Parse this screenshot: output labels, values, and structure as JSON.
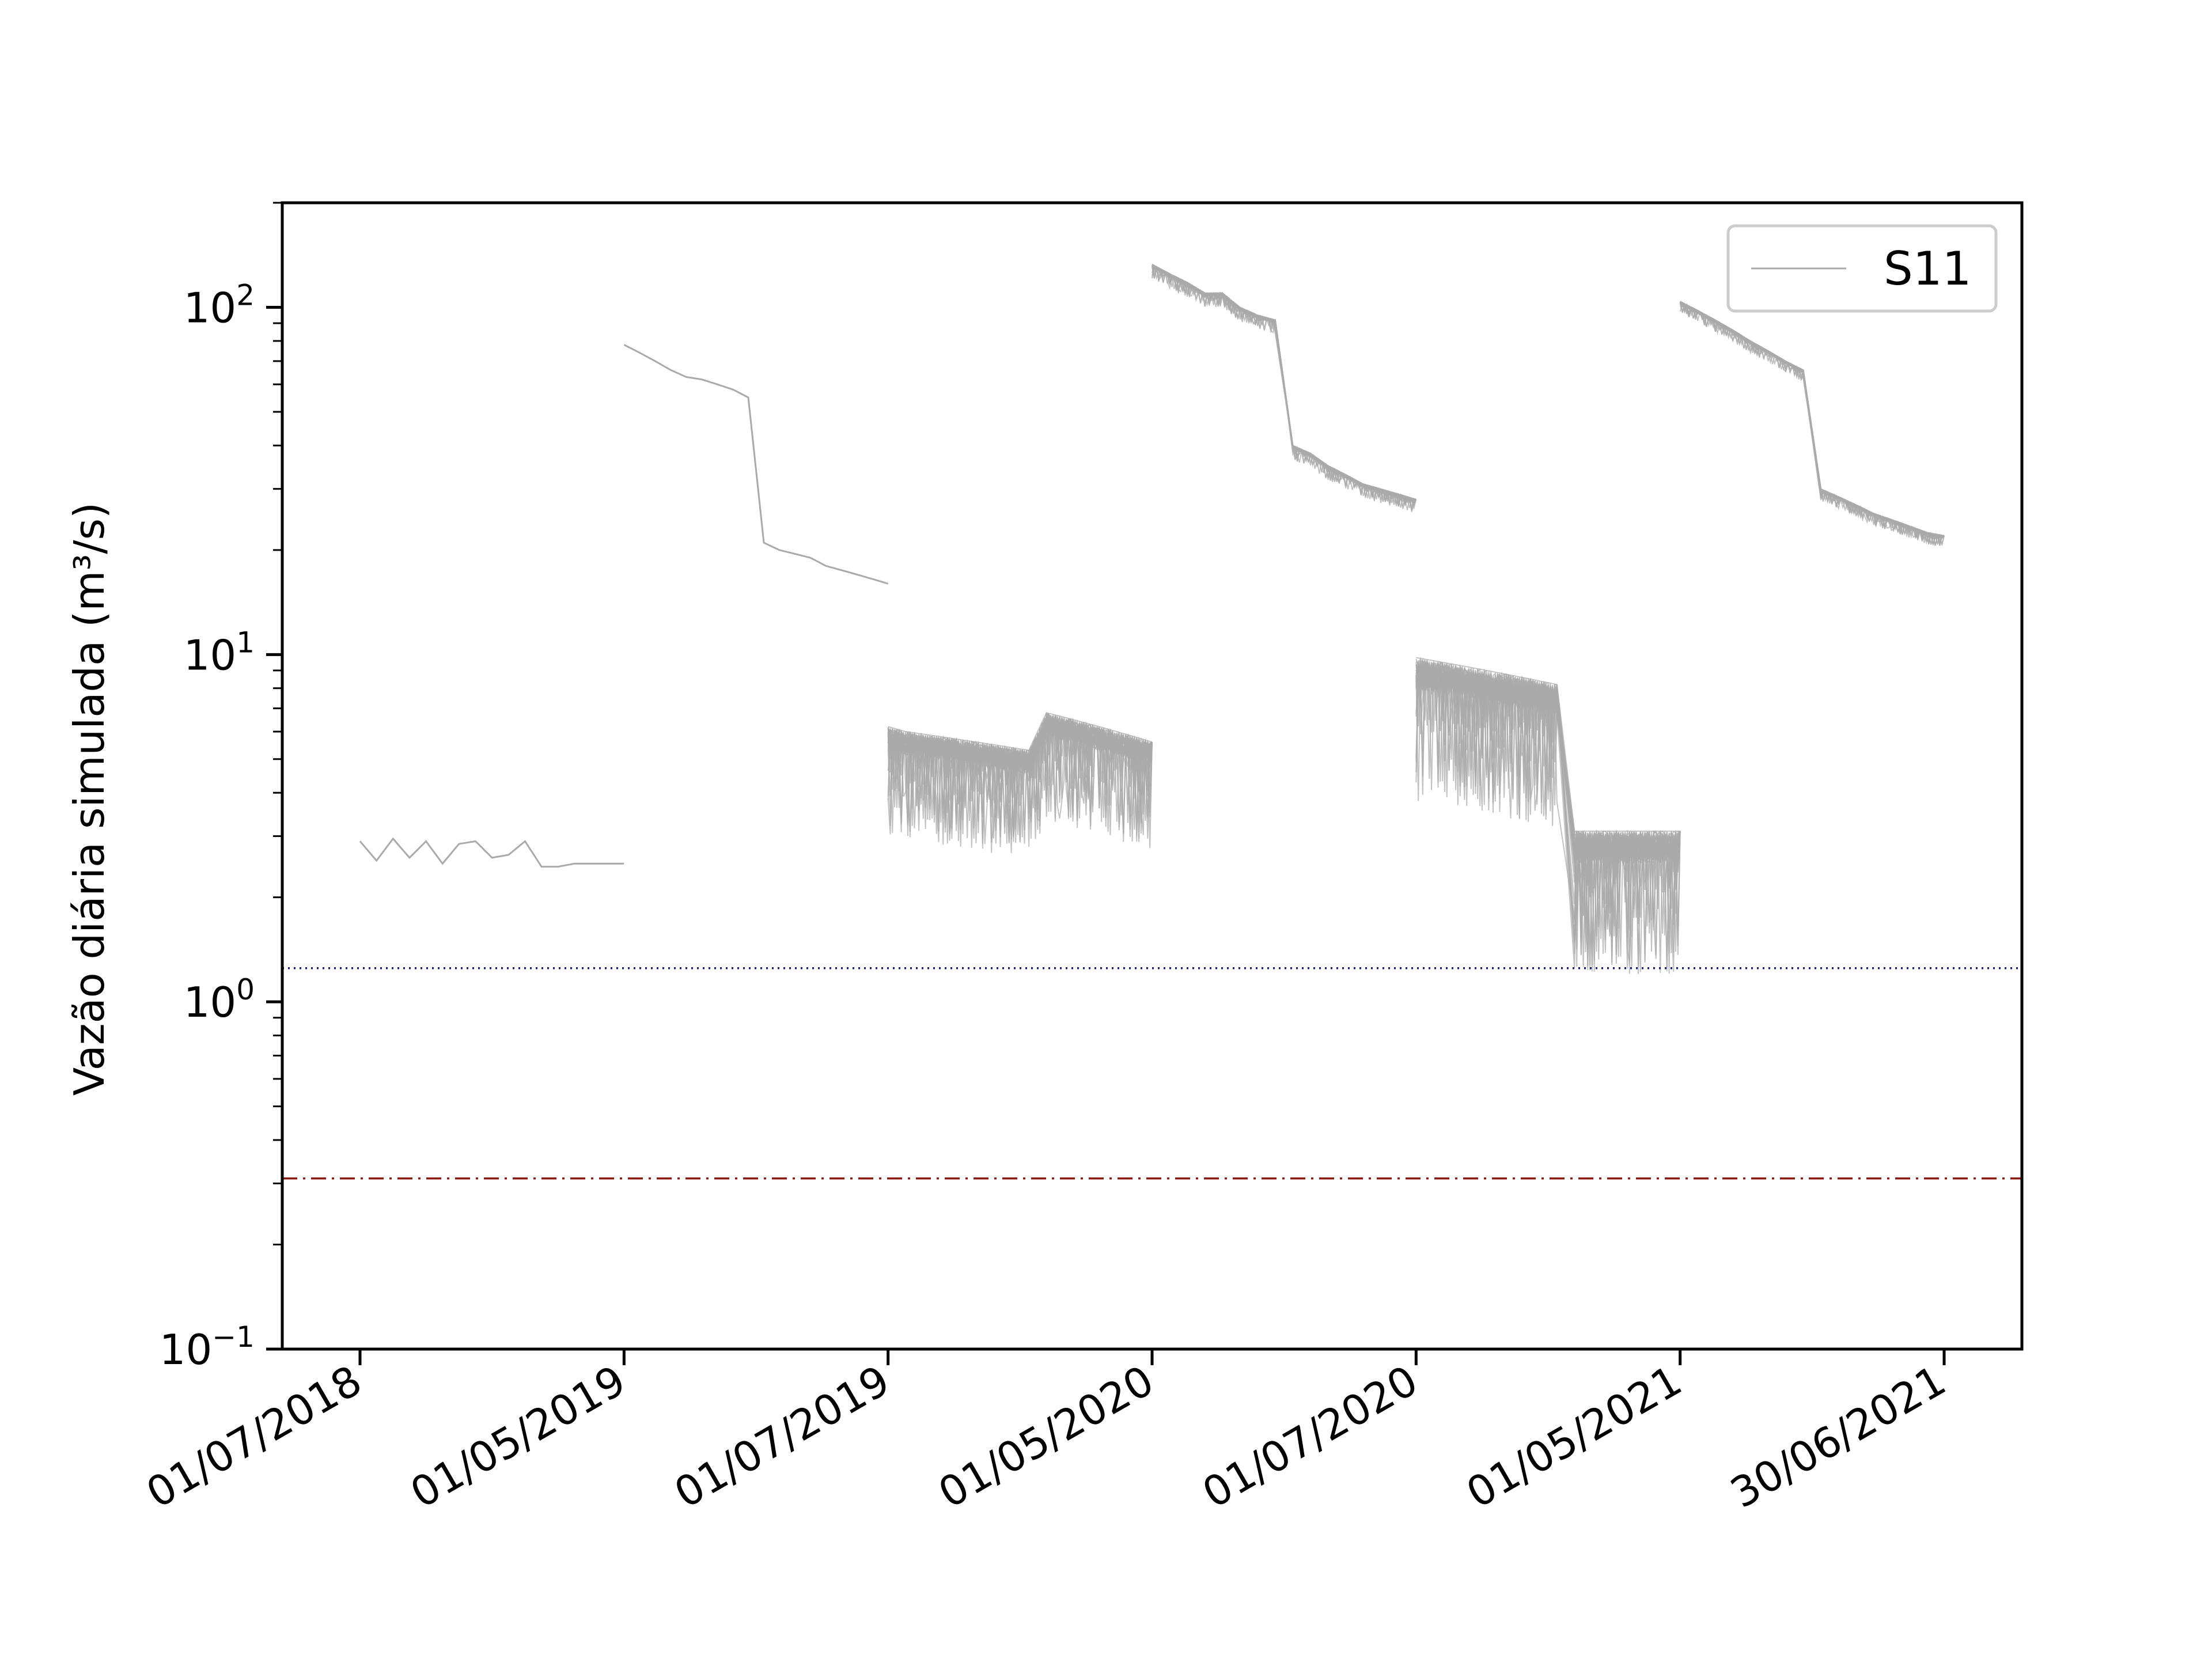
{
  "chart_data": {
    "type": "line",
    "title": "",
    "xlabel": "",
    "ylabel": "Vazão diária simulada (m³/s)",
    "yscale": "log",
    "ylim": [
      0.1,
      200
    ],
    "y_ticks": [
      {
        "value": 0.1,
        "base": "10",
        "exp": "−1"
      },
      {
        "value": 1,
        "base": "10",
        "exp": "0"
      },
      {
        "value": 10,
        "base": "10",
        "exp": "1"
      },
      {
        "value": 100,
        "base": "10",
        "exp": "2"
      }
    ],
    "x_ticks": [
      "01/07/2018",
      "01/05/2019",
      "01/07/2019",
      "01/05/2020",
      "01/07/2020",
      "01/05/2021",
      "30/06/2021"
    ],
    "x_note": "Each x tick is one position; simulated segments run between consecutive ticks.",
    "grid": false,
    "legend": {
      "placement": "top-right",
      "entries": [
        {
          "name": "S11",
          "color": "#aaaaaa"
        }
      ]
    },
    "series_color": "#aaaaaa",
    "ensemble_members": 40,
    "series": [
      {
        "name": "S11",
        "segments": [
          {
            "x_start": "01/07/2018",
            "x_end": "01/05/2019",
            "values": [
              2.9,
              2.55,
              2.95,
              2.6,
              2.9,
              2.5,
              2.85,
              2.9,
              2.6,
              2.65,
              2.9,
              2.45,
              2.45,
              2.5,
              2.5,
              2.5,
              2.5
            ],
            "spread": 0
          },
          {
            "x_start": "01/05/2019",
            "x_end": "01/07/2019",
            "values": [
              78,
              74,
              70,
              66,
              63,
              62,
              60,
              58,
              55,
              21,
              20,
              19.5,
              19,
              18,
              17.5,
              17,
              16.5,
              16
            ],
            "spread": 0
          },
          {
            "x_start": "01/07/2019",
            "x_end": "01/05/2020",
            "values": [
              6.2,
              6.0,
              5.9,
              5.8,
              5.7,
              5.6,
              5.5,
              5.4,
              5.3,
              6.8,
              6.6,
              6.4,
              6.2,
              6.0,
              5.8,
              5.6
            ],
            "spread": 0.45
          },
          {
            "x_start": "01/05/2020",
            "x_end": "01/07/2020",
            "values": [
              133,
              125,
              118,
              110,
              110,
              100,
              95,
              92,
              40,
              38,
              35,
              33,
              31,
              30,
              29,
              28
            ],
            "spread": 0.06
          },
          {
            "x_start": "01/07/2020",
            "x_end": "01/05/2021",
            "values": [
              9.8,
              9.6,
              9.4,
              9.2,
              9.0,
              8.8,
              8.6,
              8.4,
              8.2,
              3.1,
              3.1,
              3.1,
              3.1,
              3.1,
              3.1,
              3.1
            ],
            "spread": 0.6
          },
          {
            "x_start": "01/05/2021",
            "x_end": "30/06/2021",
            "values": [
              104,
              98,
              92,
              86,
              80,
              75,
              70,
              66,
              30,
              28.5,
              27,
              25.5,
              24.5,
              23.5,
              22.5,
              22
            ],
            "spread": 0.05
          }
        ]
      }
    ],
    "reference_lines": [
      {
        "y": 1.25,
        "style": "dotted",
        "color": "#1a1a7a"
      },
      {
        "y": 0.31,
        "style": "dashdot",
        "color": "#8b1a10"
      }
    ]
  }
}
